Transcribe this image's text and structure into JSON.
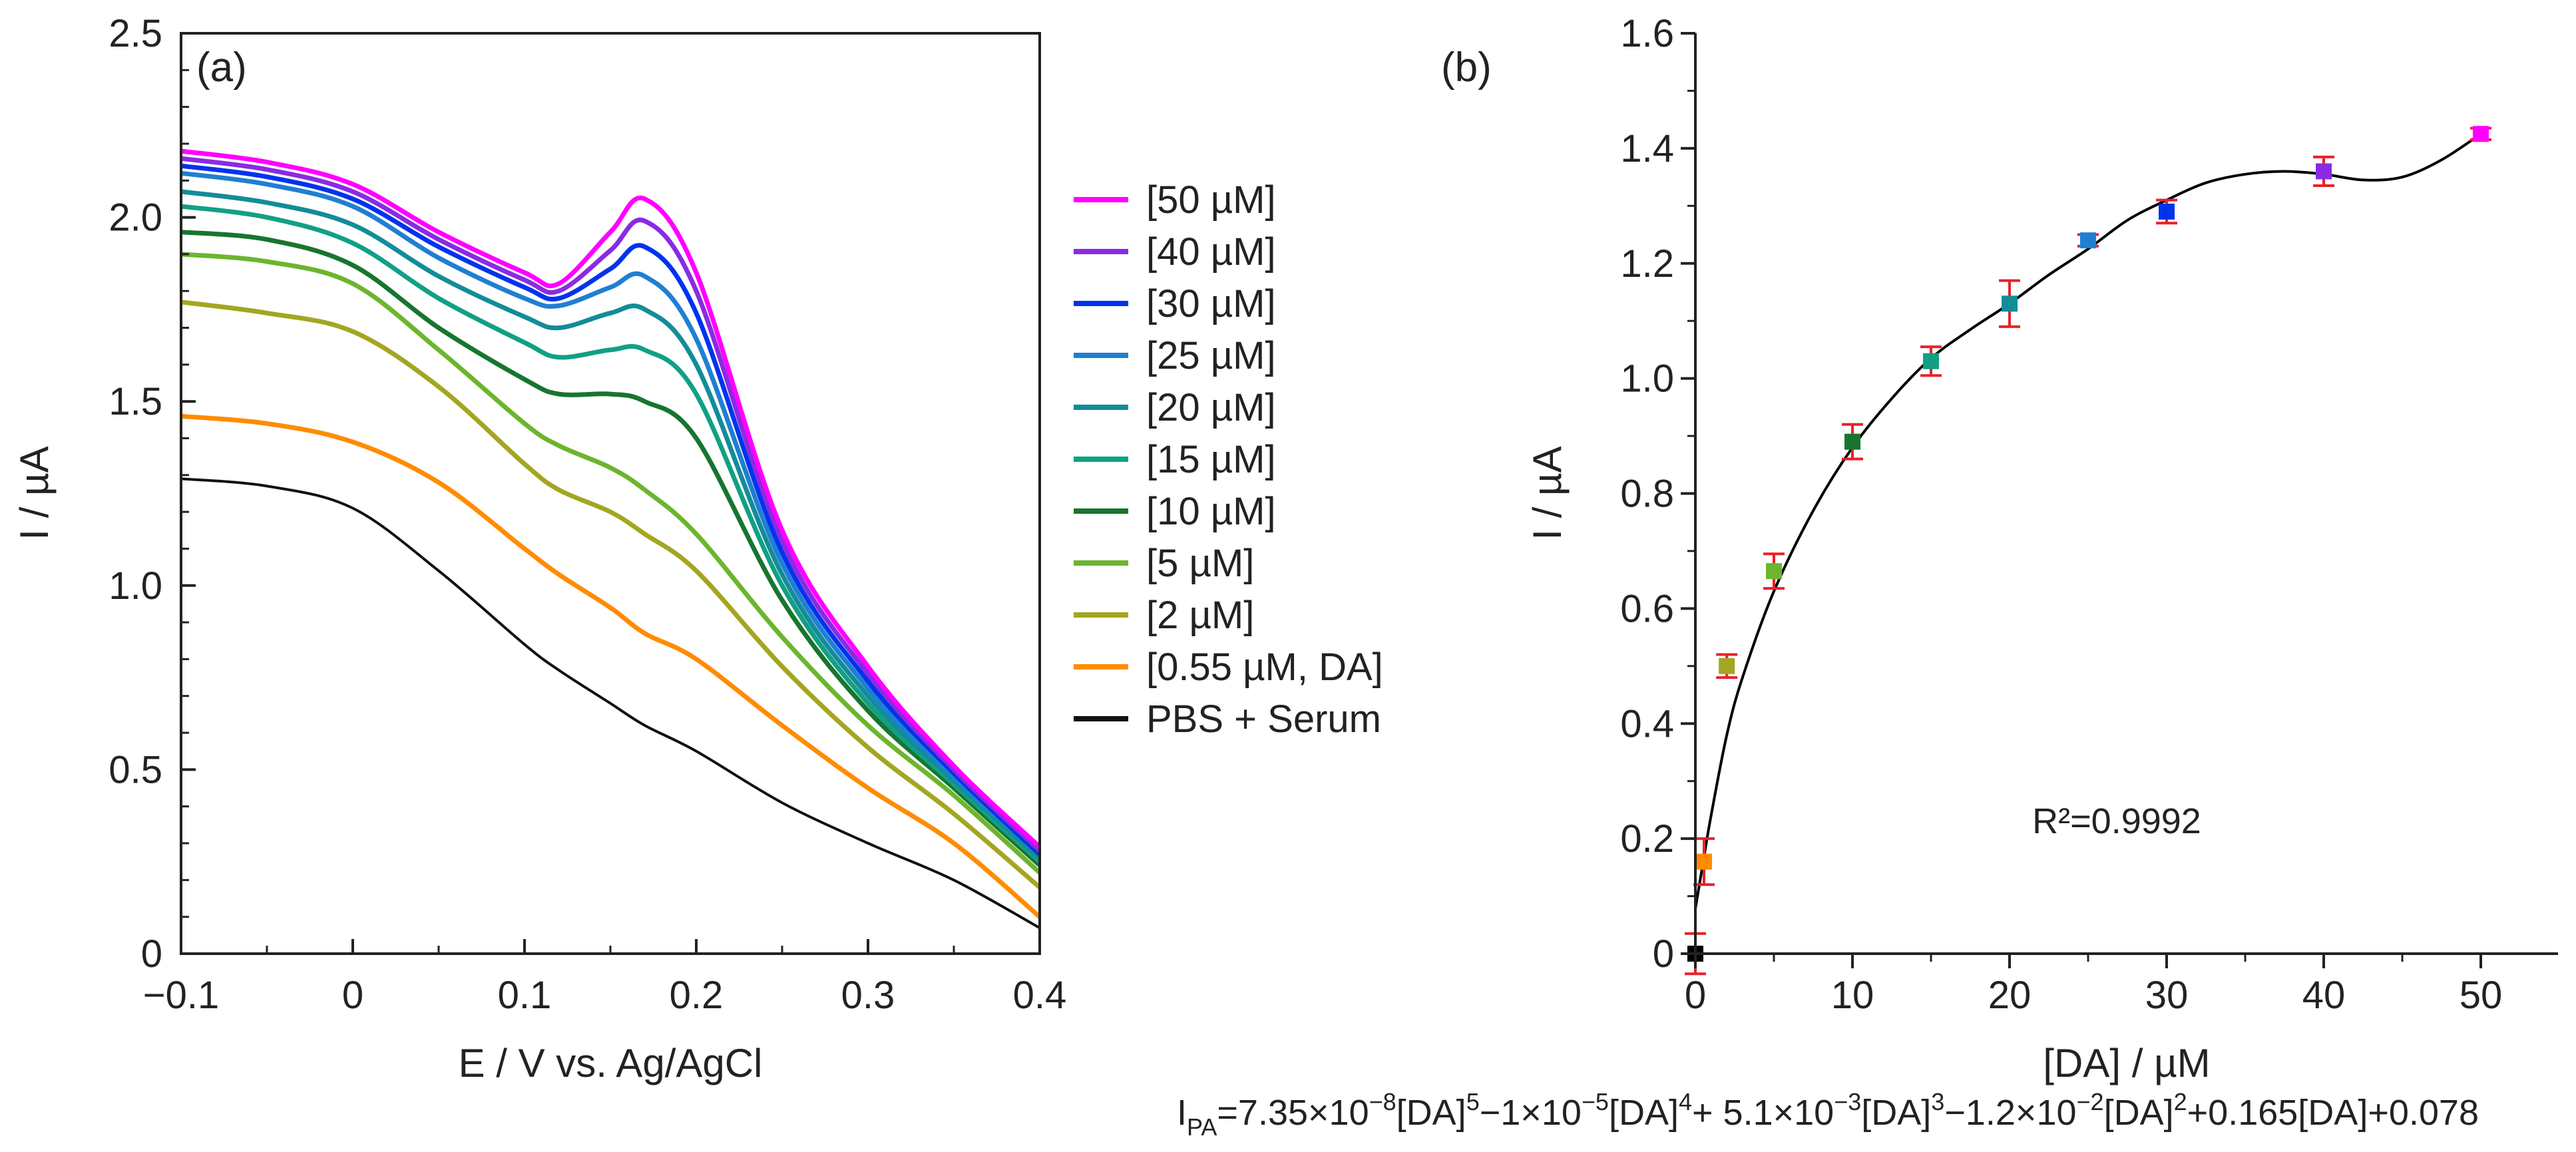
{
  "chart_data": [
    {
      "type": "line",
      "panel_label": "(a)",
      "xlabel": "E / V vs. Ag/AgCl",
      "ylabel": "I / µA",
      "xlim": [
        -0.1,
        0.4
      ],
      "ylim": [
        0,
        2.5
      ],
      "x_ticks": [
        -0.1,
        0,
        0.1,
        0.2,
        0.3,
        0.4
      ],
      "x_tick_labels": [
        "−0.1",
        "0",
        "0.1",
        "0.2",
        "0.3",
        "0.4"
      ],
      "y_ticks": [
        0,
        0.5,
        1.0,
        1.5,
        2.0,
        2.5
      ],
      "y_tick_labels": [
        "0",
        "0.5",
        "1.0",
        "1.5",
        "2.0",
        "2.5"
      ],
      "legend_position": "right",
      "series": [
        {
          "name": "[50 µM]",
          "color": "#ff00ff",
          "x": [
            -0.1,
            -0.05,
            0,
            0.05,
            0.1,
            0.12,
            0.15,
            0.17,
            0.2,
            0.25,
            0.3,
            0.35,
            0.4
          ],
          "values": [
            2.18,
            2.15,
            2.09,
            1.96,
            1.85,
            1.82,
            1.96,
            2.05,
            1.85,
            1.15,
            0.78,
            0.51,
            0.29
          ]
        },
        {
          "name": "[40 µM]",
          "color": "#8a2be2",
          "x": [
            -0.1,
            -0.05,
            0,
            0.05,
            0.1,
            0.12,
            0.15,
            0.17,
            0.2,
            0.25,
            0.3,
            0.35,
            0.4
          ],
          "values": [
            2.16,
            2.13,
            2.07,
            1.94,
            1.83,
            1.8,
            1.91,
            1.99,
            1.8,
            1.12,
            0.76,
            0.5,
            0.28
          ]
        },
        {
          "name": "[30 µM]",
          "color": "#0033ee",
          "x": [
            -0.1,
            -0.05,
            0,
            0.05,
            0.1,
            0.12,
            0.15,
            0.17,
            0.2,
            0.25,
            0.3,
            0.35,
            0.4
          ],
          "values": [
            2.14,
            2.11,
            2.05,
            1.92,
            1.81,
            1.78,
            1.86,
            1.92,
            1.74,
            1.09,
            0.74,
            0.49,
            0.27
          ]
        },
        {
          "name": "[25 µM]",
          "color": "#1f7fd1",
          "x": [
            -0.1,
            -0.05,
            0,
            0.05,
            0.1,
            0.12,
            0.15,
            0.17,
            0.2,
            0.25,
            0.3,
            0.35,
            0.4
          ],
          "values": [
            2.12,
            2.09,
            2.03,
            1.89,
            1.78,
            1.76,
            1.81,
            1.84,
            1.67,
            1.06,
            0.72,
            0.48,
            0.27
          ]
        },
        {
          "name": "[20 µM]",
          "color": "#138c99",
          "x": [
            -0.1,
            -0.05,
            0,
            0.05,
            0.1,
            0.12,
            0.15,
            0.17,
            0.2,
            0.25,
            0.3,
            0.35,
            0.4
          ],
          "values": [
            2.07,
            2.04,
            1.98,
            1.84,
            1.73,
            1.7,
            1.74,
            1.75,
            1.6,
            1.03,
            0.7,
            0.47,
            0.26
          ]
        },
        {
          "name": "[15 µM]",
          "color": "#11a084",
          "x": [
            -0.1,
            -0.05,
            0,
            0.05,
            0.1,
            0.12,
            0.15,
            0.17,
            0.2,
            0.25,
            0.3,
            0.35,
            0.4
          ],
          "values": [
            2.03,
            2.0,
            1.93,
            1.78,
            1.66,
            1.62,
            1.64,
            1.64,
            1.52,
            1.0,
            0.68,
            0.46,
            0.25
          ]
        },
        {
          "name": "[10 µM]",
          "color": "#17752e",
          "x": [
            -0.1,
            -0.05,
            0,
            0.05,
            0.1,
            0.12,
            0.15,
            0.17,
            0.2,
            0.25,
            0.3,
            0.35,
            0.4
          ],
          "values": [
            1.96,
            1.94,
            1.87,
            1.7,
            1.56,
            1.52,
            1.52,
            1.5,
            1.4,
            0.96,
            0.66,
            0.45,
            0.24
          ]
        },
        {
          "name": "[5 µM]",
          "color": "#6cb52d",
          "x": [
            -0.1,
            -0.05,
            0,
            0.05,
            0.1,
            0.12,
            0.15,
            0.17,
            0.2,
            0.25,
            0.3,
            0.35,
            0.4
          ],
          "values": [
            1.9,
            1.88,
            1.82,
            1.64,
            1.44,
            1.38,
            1.32,
            1.26,
            1.14,
            0.86,
            0.62,
            0.43,
            0.22
          ]
        },
        {
          "name": "[2 µM]",
          "color": "#a3a621",
          "x": [
            -0.1,
            -0.05,
            0,
            0.05,
            0.1,
            0.12,
            0.15,
            0.17,
            0.2,
            0.25,
            0.3,
            0.35,
            0.4
          ],
          "values": [
            1.77,
            1.74,
            1.69,
            1.54,
            1.33,
            1.26,
            1.2,
            1.14,
            1.04,
            0.78,
            0.56,
            0.38,
            0.18
          ]
        },
        {
          "name": "[0.55 µM, DA]",
          "color": "#ff8c00",
          "x": [
            -0.1,
            -0.05,
            0,
            0.05,
            0.1,
            0.12,
            0.15,
            0.17,
            0.2,
            0.25,
            0.3,
            0.35,
            0.4
          ],
          "values": [
            1.46,
            1.44,
            1.39,
            1.28,
            1.1,
            1.03,
            0.94,
            0.87,
            0.8,
            0.62,
            0.45,
            0.3,
            0.1
          ]
        },
        {
          "name": "PBS + Serum",
          "color": "#111111",
          "x": [
            -0.1,
            -0.05,
            0,
            0.05,
            0.1,
            0.12,
            0.15,
            0.17,
            0.2,
            0.25,
            0.3,
            0.35,
            0.4
          ],
          "values": [
            1.29,
            1.27,
            1.21,
            1.04,
            0.84,
            0.77,
            0.68,
            0.62,
            0.55,
            0.41,
            0.3,
            0.2,
            0.07
          ]
        }
      ]
    },
    {
      "type": "scatter",
      "panel_label": "(b)",
      "xlabel": "[DA] / µM",
      "ylabel": "I / µA",
      "xlim": [
        -1,
        55
      ],
      "ylim": [
        0,
        1.6
      ],
      "x_ticks": [
        0,
        10,
        20,
        30,
        40,
        50
      ],
      "x_tick_labels": [
        "0",
        "10",
        "20",
        "30",
        "40",
        "50"
      ],
      "y_ticks": [
        0,
        0.2,
        0.4,
        0.6,
        0.8,
        1.0,
        1.2,
        1.4,
        1.6
      ],
      "y_tick_labels": [
        "0",
        "0.2",
        "0.4",
        "0.6",
        "0.8",
        "1.0",
        "1.2",
        "1.4",
        "1.6"
      ],
      "errorbar_color": "#e8202a",
      "fit_color": "#000000",
      "points": [
        {
          "x": 0,
          "y": 0.0,
          "err": 0.035,
          "color": "#000000"
        },
        {
          "x": 0.55,
          "y": 0.16,
          "err": 0.04,
          "color": "#ff8c00"
        },
        {
          "x": 2,
          "y": 0.5,
          "err": 0.02,
          "color": "#a3a621"
        },
        {
          "x": 5,
          "y": 0.665,
          "err": 0.03,
          "color": "#6cb52d"
        },
        {
          "x": 10,
          "y": 0.89,
          "err": 0.03,
          "color": "#17752e"
        },
        {
          "x": 15,
          "y": 1.03,
          "err": 0.025,
          "color": "#11a084"
        },
        {
          "x": 20,
          "y": 1.13,
          "err": 0.04,
          "color": "#138c99"
        },
        {
          "x": 25,
          "y": 1.24,
          "err": 0.01,
          "color": "#1f7fd1"
        },
        {
          "x": 30,
          "y": 1.29,
          "err": 0.02,
          "color": "#0033ee"
        },
        {
          "x": 40,
          "y": 1.36,
          "err": 0.025,
          "color": "#8a2be2"
        },
        {
          "x": 50,
          "y": 1.425,
          "err": 0.01,
          "color": "#ff00ff"
        }
      ],
      "fit_curve": {
        "x": [
          0,
          0.5,
          1,
          2,
          3,
          5,
          7.5,
          10,
          12.5,
          15,
          17.5,
          20,
          22.5,
          25,
          27.5,
          30,
          32.5,
          35,
          37.5,
          40,
          42.5,
          45,
          47.5,
          50
        ],
        "values": [
          0.078,
          0.16,
          0.24,
          0.38,
          0.48,
          0.63,
          0.77,
          0.88,
          0.965,
          1.035,
          1.085,
          1.13,
          1.18,
          1.225,
          1.275,
          1.31,
          1.34,
          1.355,
          1.36,
          1.355,
          1.345,
          1.35,
          1.38,
          1.425
        ]
      },
      "annotation": "R²=0.9992",
      "equation_parts": {
        "i": "I",
        "pa": "PA",
        "a": "=7.35×10",
        "e1": "−8",
        "b": "[DA]",
        "e2": "5",
        "c": "−1×10",
        "e3": "−5",
        "d": "[DA]",
        "e4": "4",
        "e": "+ 5.1×10",
        "e5": "−3",
        "f": "[DA]",
        "e6": "3",
        "g": "−1.2×10",
        "e7": "−2",
        "h": "[DA]",
        "e8": "2",
        "j": "+0.165[DA]+0.078"
      }
    }
  ]
}
